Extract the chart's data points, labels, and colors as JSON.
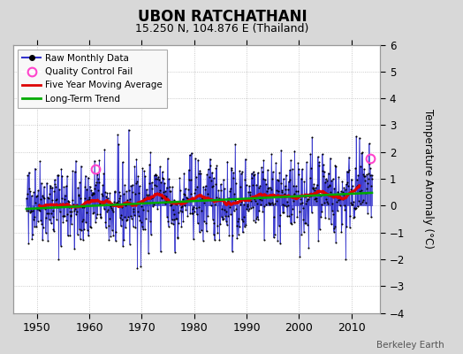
{
  "title": "UBON RATCHATHANI",
  "subtitle": "15.250 N, 104.876 E (Thailand)",
  "ylabel": "Temperature Anomaly (°C)",
  "credit": "Berkeley Earth",
  "ylim": [
    -4,
    6
  ],
  "yticks": [
    -4,
    -3,
    -2,
    -1,
    0,
    1,
    2,
    3,
    4,
    5,
    6
  ],
  "start_year": 1948,
  "end_year": 2014,
  "fig_bg_color": "#d8d8d8",
  "plot_bg_color": "#ffffff",
  "line_color": "#3333cc",
  "line_fill_color": "#aaaaee",
  "moving_avg_color": "#dd0000",
  "trend_color": "#00aa00",
  "qc_color": "#ff44cc",
  "qc_points": [
    [
      1961.25,
      1.35
    ],
    [
      2013.5,
      1.75
    ]
  ],
  "xlim": [
    1945.5,
    2015.5
  ],
  "xticks": [
    1950,
    1960,
    1970,
    1980,
    1990,
    2000,
    2010
  ],
  "seed": 42
}
